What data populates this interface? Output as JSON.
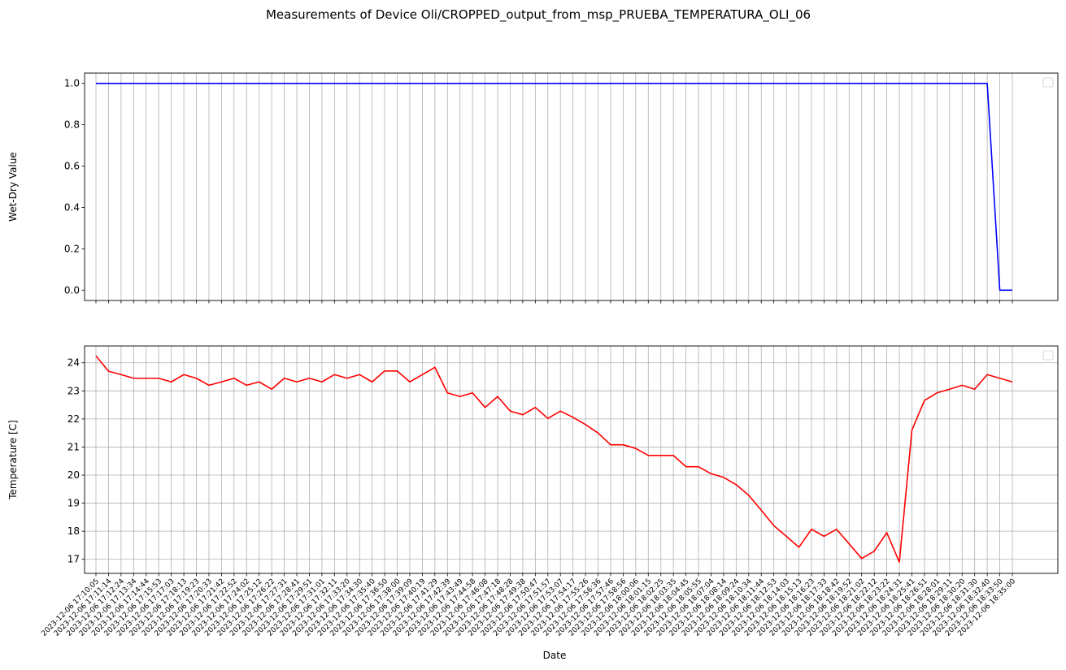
{
  "chart_data": {
    "type": "line",
    "title": "Measurements of Device Oli/CROPPED_output_from_msp_PRUEBA_TEMPERATURA_OLI_06",
    "xlabel": "Date",
    "x": [
      "2023-12-06 17:10:05",
      "2023-12-06 17:11:14",
      "2023-12-06 17:12:24",
      "2023-12-06 17:13:34",
      "2023-12-06 17:14:44",
      "2023-12-06 17:15:53",
      "2023-12-06 17:17:03",
      "2023-12-06 17:18:13",
      "2023-12-06 17:19:23",
      "2023-12-06 17:20:33",
      "2023-12-06 17:21:42",
      "2023-12-06 17:22:52",
      "2023-12-06 17:24:02",
      "2023-12-06 17:25:12",
      "2023-12-06 17:26:22",
      "2023-12-06 17:27:31",
      "2023-12-06 17:28:41",
      "2023-12-06 17:29:51",
      "2023-12-06 17:31:01",
      "2023-12-06 17:32:11",
      "2023-12-06 17:33:20",
      "2023-12-06 17:34:30",
      "2023-12-06 17:35:40",
      "2023-12-06 17:36:50",
      "2023-12-06 17:38:00",
      "2023-12-06 17:39:09",
      "2023-12-06 17:40:19",
      "2023-12-06 17:41:29",
      "2023-12-06 17:42:39",
      "2023-12-06 17:43:49",
      "2023-12-06 17:44:58",
      "2023-12-06 17:46:08",
      "2023-12-06 17:47:18",
      "2023-12-06 17:48:28",
      "2023-12-06 17:49:38",
      "2023-12-06 17:50:47",
      "2023-12-06 17:51:57",
      "2023-12-06 17:53:07",
      "2023-12-06 17:54:17",
      "2023-12-06 17:55:26",
      "2023-12-06 17:56:36",
      "2023-12-06 17:57:46",
      "2023-12-06 17:58:56",
      "2023-12-06 18:00:06",
      "2023-12-06 18:01:15",
      "2023-12-06 18:02:25",
      "2023-12-06 18:03:35",
      "2023-12-06 18:04:45",
      "2023-12-06 18:05:55",
      "2023-12-06 18:07:04",
      "2023-12-06 18:08:14",
      "2023-12-06 18:09:24",
      "2023-12-06 18:10:34",
      "2023-12-06 18:11:44",
      "2023-12-06 18:12:53",
      "2023-12-06 18:14:03",
      "2023-12-06 18:15:13",
      "2023-12-06 18:16:23",
      "2023-12-06 18:17:33",
      "2023-12-06 18:18:42",
      "2023-12-06 18:19:52",
      "2023-12-06 18:21:02",
      "2023-12-06 18:22:12",
      "2023-12-06 18:23:22",
      "2023-12-06 18:24:31",
      "2023-12-06 18:25:41",
      "2023-12-06 18:26:51",
      "2023-12-06 18:28:01",
      "2023-12-06 18:29:11",
      "2023-12-06 18:30:20",
      "2023-12-06 18:31:30",
      "2023-12-06 18:32:40",
      "2023-12-06 18:33:50",
      "2023-12-06 18:35:00"
    ],
    "panels": [
      {
        "ylabel": "Wet-Dry Value",
        "ylim": [
          -0.05,
          1.05
        ],
        "yticks": [
          "0.0",
          "0.2",
          "0.4",
          "0.6",
          "0.8",
          "1.0"
        ],
        "ytick_values": [
          0,
          0.2,
          0.4,
          0.6,
          0.8,
          1.0
        ],
        "grid": "vertical",
        "legend": "top-right (empty)",
        "series": [
          {
            "color": "#0000ff",
            "values": [
              1,
              1,
              1,
              1,
              1,
              1,
              1,
              1,
              1,
              1,
              1,
              1,
              1,
              1,
              1,
              1,
              1,
              1,
              1,
              1,
              1,
              1,
              1,
              1,
              1,
              1,
              1,
              1,
              1,
              1,
              1,
              1,
              1,
              1,
              1,
              1,
              1,
              1,
              1,
              1,
              1,
              1,
              1,
              1,
              1,
              1,
              1,
              1,
              1,
              1,
              1,
              1,
              1,
              1,
              1,
              1,
              1,
              1,
              1,
              1,
              1,
              1,
              1,
              1,
              1,
              1,
              1,
              1,
              1,
              1,
              1,
              1,
              0,
              0
            ]
          }
        ]
      },
      {
        "ylabel": "Temperature [C]",
        "ylim": [
          16.5,
          24.6
        ],
        "yticks": [
          "17",
          "18",
          "19",
          "20",
          "21",
          "22",
          "23",
          "24"
        ],
        "ytick_values": [
          17,
          18,
          19,
          20,
          21,
          22,
          23,
          24
        ],
        "grid": "both",
        "legend": "top-right (empty)",
        "series": [
          {
            "color": "#ff0000",
            "values": [
              24.25,
              23.7,
              23.58,
              23.45,
              23.45,
              23.45,
              23.32,
              23.58,
              23.45,
              23.2,
              23.32,
              23.45,
              23.2,
              23.32,
              23.06,
              23.45,
              23.32,
              23.45,
              23.32,
              23.58,
              23.45,
              23.58,
              23.32,
              23.71,
              23.71,
              23.32,
              23.58,
              23.84,
              22.93,
              22.8,
              22.93,
              22.41,
              22.8,
              22.28,
              22.15,
              22.41,
              22.02,
              22.28,
              22.06,
              21.8,
              21.5,
              21.08,
              21.08,
              20.95,
              20.7,
              20.7,
              20.7,
              20.3,
              20.3,
              20.05,
              19.92,
              19.66,
              19.28,
              18.75,
              18.2,
              17.82,
              17.43,
              18.07,
              17.82,
              18.07,
              17.55,
              17.03,
              17.29,
              17.95,
              16.9,
              21.6,
              22.66,
              22.93,
              23.06,
              23.2,
              23.06,
              23.58,
              23.45,
              23.32
            ]
          }
        ]
      }
    ]
  }
}
